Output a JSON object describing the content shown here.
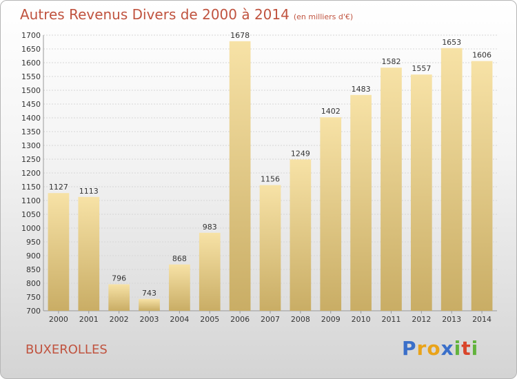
{
  "title": "Autres Revenus Divers de 2000 à 2014",
  "title_unit": "(en milliers d'€)",
  "commune": "BUXEROLLES",
  "logo": {
    "letters": [
      "P",
      "r",
      "o",
      "x",
      "i",
      "t",
      "i"
    ],
    "colors": [
      "#3a6fc9",
      "#e9a31a",
      "#e9a31a",
      "#3a6fc9",
      "#62b33c",
      "#d9452b",
      "#62b33c"
    ]
  },
  "colors": {
    "title": "#c0533f",
    "bar_light": "#f7e2a6",
    "bar_dark": "#c9ad65"
  },
  "chart_data": {
    "type": "bar",
    "title": "Autres Revenus Divers de 2000 à 2014",
    "categories": [
      "2000",
      "2001",
      "2002",
      "2003",
      "2004",
      "2005",
      "2006",
      "2007",
      "2008",
      "2009",
      "2010",
      "2011",
      "2012",
      "2013",
      "2014"
    ],
    "values": [
      1127,
      1113,
      796,
      743,
      868,
      983,
      1678,
      1156,
      1249,
      1402,
      1483,
      1582,
      1557,
      1653,
      1606
    ],
    "data_labels": [
      "1127",
      "1113",
      "796",
      "743",
      "868",
      "983",
      "1678",
      "1156",
      "1249",
      "1402",
      "1483",
      "1582",
      "1557",
      "1653",
      "1606"
    ],
    "ylim": [
      700,
      1700
    ],
    "yticks": [
      700,
      750,
      800,
      850,
      900,
      950,
      1000,
      1050,
      1100,
      1150,
      1200,
      1250,
      1300,
      1350,
      1400,
      1450,
      1500,
      1550,
      1600,
      1650,
      1700
    ],
    "grid": true
  }
}
